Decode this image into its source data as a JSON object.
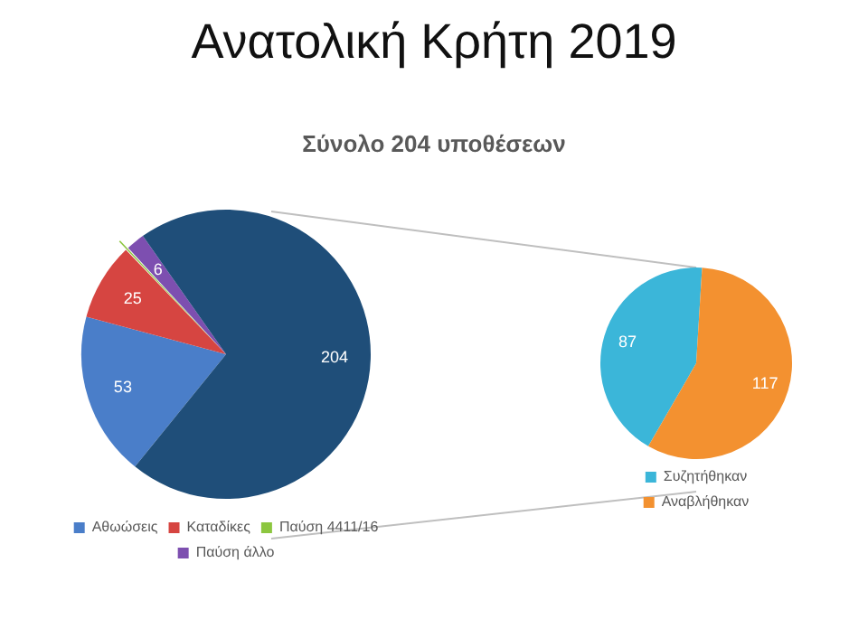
{
  "chart_data": [
    {
      "type": "pie",
      "title": "Ανατολική Κρήτη 2019",
      "subtitle": "Σύνολο 204 υποθέσεων",
      "categories": [
        "Αθωώσεις",
        "Καταδίκες",
        "Παύση 4411/16",
        "Παύση άλλο",
        null
      ],
      "values": [
        53,
        25,
        1,
        6,
        204
      ],
      "colors": [
        "#4a7ec9",
        "#d64541",
        "#8cc63f",
        "#7d4fb0",
        "#1f4e79"
      ],
      "value_labels": [
        "53",
        "25",
        null,
        "6",
        "204"
      ],
      "legend": "bottom"
    },
    {
      "type": "pie",
      "categories": [
        "Συζητήθηκαν",
        "Αναβλήθηκαν"
      ],
      "values": [
        87,
        117
      ],
      "colors": [
        "#3bb6d9",
        "#f39130"
      ],
      "data_labels": true,
      "legend": "bottom"
    }
  ]
}
